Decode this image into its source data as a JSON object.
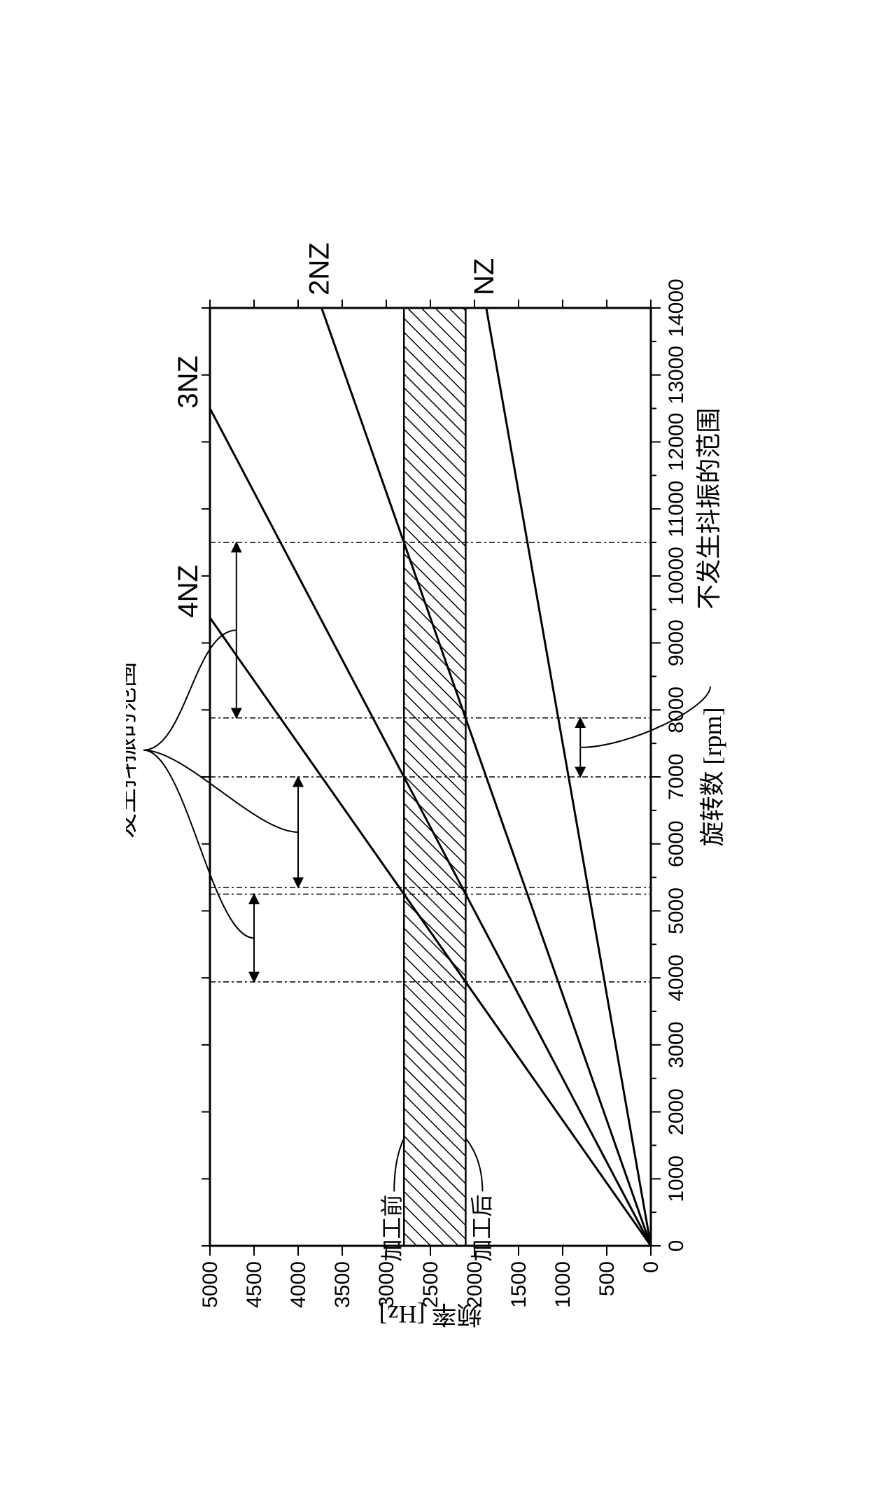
{
  "chart": {
    "type": "line",
    "orientation": "rotated-90ccw",
    "background_color": "#ffffff",
    "labels": {
      "top_brace": "发生抖振的范围",
      "bottom_label": "不发生抖振的范围",
      "xlabel": "旋转数 [rpm]",
      "ylabel": "频率 [Hz]",
      "before": "加工前",
      "after": "加工后",
      "series_NZ": "NZ",
      "series_2NZ": "2NZ",
      "series_3NZ": "3NZ",
      "series_4NZ": "4NZ"
    },
    "axis": {
      "x": {
        "min": 0,
        "max": 14000,
        "tick_step": 1000,
        "minor_step": 500
      },
      "y": {
        "min": 0,
        "max": 5000,
        "tick_step": 500
      }
    },
    "band": {
      "y_lower": 2100,
      "y_upper": 2800,
      "hatch_angle": 45,
      "hatch_color": "#000000",
      "hatch_spacing": 14
    },
    "series": [
      {
        "name": "4NZ",
        "slope_hz_per_rpm": 0.5333,
        "color": "#000000",
        "linewidth": 3
      },
      {
        "name": "3NZ",
        "slope_hz_per_rpm": 0.4,
        "color": "#000000",
        "linewidth": 3
      },
      {
        "name": "2NZ",
        "slope_hz_per_rpm": 0.2667,
        "color": "#000000",
        "linewidth": 3
      },
      {
        "name": "NZ",
        "slope_hz_per_rpm": 0.1333,
        "color": "#000000",
        "linewidth": 3
      }
    ],
    "vlines": {
      "positions": [
        3940,
        5250,
        5350,
        7000,
        7880,
        10500
      ],
      "dash": "8 4 3 4",
      "color": "#000000",
      "linewidth": 1.5
    },
    "chatter_ranges": [
      {
        "x1": 3940,
        "x2": 5250,
        "arrow_y": 4500
      },
      {
        "x1": 5350,
        "x2": 7000,
        "arrow_y": 4000
      },
      {
        "x1": 7880,
        "x2": 10500,
        "arrow_y": 4700
      }
    ],
    "stable_ranges": [
      {
        "x1": 7000,
        "x2": 7880,
        "arrow_y": 800
      }
    ],
    "label_fontsize": 36,
    "tick_fontsize": 30,
    "series_fontsize": 40
  }
}
